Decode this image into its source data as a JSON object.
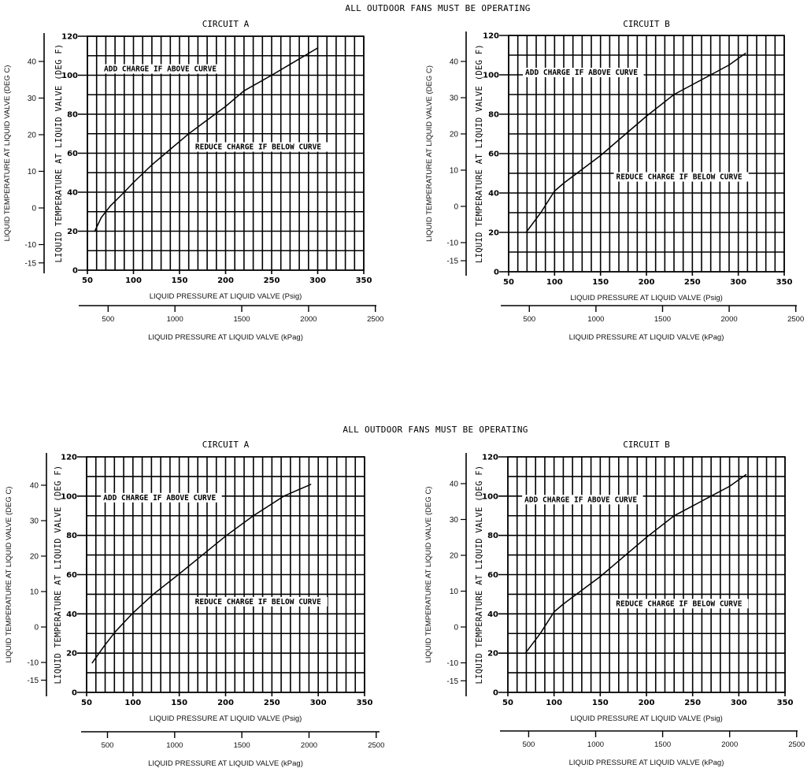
{
  "headings": [
    {
      "text": "ALL OUTDOOR FANS MUST BE OPERATING"
    },
    {
      "text": "ALL OUTDOOR FANS MUST BE OPERATING"
    }
  ],
  "chart_data": [
    {
      "type": "line",
      "title": "CIRCUIT A",
      "xlabel": "LIQUID PRESSURE AT LIQUID VALVE (Psig)",
      "x2label": "LIQUID PRESSURE AT LIQUID VALVE (kPag)",
      "ylabel": "LIQUID TEMPERATURE AT LIQUID VALVE (DEG F)",
      "y2label": "LIQUID TEMPERATURE AT LIQUID VALVE (DEG C)",
      "xlim": [
        50,
        350
      ],
      "ylim": [
        0,
        120
      ],
      "xticks": [
        "50",
        "100",
        "150",
        "200",
        "250",
        "300",
        "350"
      ],
      "yticks": [
        "0",
        "20",
        "40",
        "60",
        "80",
        "100",
        "120"
      ],
      "x2ticks": [
        "500",
        "1000",
        "1500",
        "2000",
        "2500"
      ],
      "y2ticks": [
        "40",
        "30",
        "20",
        "10",
        "0",
        "-10",
        "-15"
      ],
      "grid": true,
      "annotations": [
        "ADD CHARGE IF ABOVE CURVE",
        "REDUCE CHARGE IF BELOW CURVE"
      ],
      "series": [
        {
          "name": "Circuit A",
          "x": [
            58,
            65,
            75,
            90,
            100,
            120,
            140,
            160,
            180,
            200,
            220,
            250,
            275,
            300
          ],
          "y": [
            20,
            27,
            33,
            40,
            45,
            54,
            62,
            70,
            77,
            84,
            92,
            100,
            107,
            114
          ]
        }
      ]
    },
    {
      "type": "line",
      "title": "CIRCUIT B",
      "xlabel": "LIQUID PRESSURE AT LIQUID VALVE (Psig)",
      "x2label": "LIQUID PRESSURE AT LIQUID VALVE (kPag)",
      "ylabel": "LIQUID TEMPERATURE AT LIQUID VALVE (DEG F)",
      "y2label": "LIQUID TEMPERATURE AT LIQUID VALVE (DEG C)",
      "xlim": [
        50,
        350
      ],
      "ylim": [
        0,
        120
      ],
      "xticks": [
        "50",
        "100",
        "150",
        "200",
        "250",
        "300",
        "350"
      ],
      "yticks": [
        "0",
        "20",
        "40",
        "60",
        "80",
        "100",
        "120"
      ],
      "x2ticks": [
        "500",
        "1000",
        "1500",
        "2000",
        "2500"
      ],
      "y2ticks": [
        "40",
        "30",
        "20",
        "10",
        "0",
        "-10",
        "-15"
      ],
      "grid": true,
      "annotations": [
        "ADD CHARGE IF ABOVE CURVE",
        "REDUCE CHARGE IF BELOW CURVE"
      ],
      "series": [
        {
          "name": "Circuit B",
          "x": [
            69,
            85,
            100,
            110,
            130,
            150,
            175,
            200,
            230,
            250,
            270,
            290,
            308
          ],
          "y": [
            20,
            30,
            41,
            45,
            52,
            59,
            69,
            79,
            90,
            95,
            100,
            105,
            111
          ]
        }
      ]
    },
    {
      "type": "line",
      "title": "CIRCUIT A",
      "xlabel": "LIQUID PRESSURE AT LIQUID VALVE (Psig)",
      "x2label": "LIQUID PRESSURE AT LIQUID VALVE (kPag)",
      "ylabel": "LIQUID TEMPERATURE AT LIQUID VALVE (DEG F)",
      "y2label": "LIQUID TEMPERATURE AT LIQUID VALVE (DEG C)",
      "xlim": [
        50,
        350
      ],
      "ylim": [
        0,
        120
      ],
      "xticks": [
        "50",
        "100",
        "150",
        "200",
        "250",
        "300",
        "350"
      ],
      "yticks": [
        "0",
        "20",
        "40",
        "60",
        "80",
        "100",
        "120"
      ],
      "x2ticks": [
        "500",
        "1000",
        "1500",
        "2000",
        "2500"
      ],
      "y2ticks": [
        "40",
        "30",
        "20",
        "10",
        "0",
        "-10",
        "-15"
      ],
      "grid": true,
      "annotations": [
        "ADD CHARGE IF ABOVE CURVE",
        "REDUCE CHARGE IF BELOW CURVE"
      ],
      "series": [
        {
          "name": "Circuit A",
          "x": [
            56,
            68,
            81,
            99,
            122,
            149,
            175,
            201,
            230,
            263,
            292
          ],
          "y": [
            15,
            23,
            31,
            40,
            50,
            60,
            70,
            80,
            90,
            100,
            106
          ]
        }
      ]
    },
    {
      "type": "line",
      "title": "CIRCUIT B",
      "xlabel": "LIQUID PRESSURE AT LIQUID VALVE (Psig)",
      "x2label": "LIQUID PRESSURE AT LIQUID VALVE (kPag)",
      "ylabel": "LIQUID TEMPERATURE AT LIQUID VALVE (DEG F)",
      "y2label": "LIQUID TEMPERATURE AT LIQUID VALVE (DEG C)",
      "xlim": [
        50,
        350
      ],
      "ylim": [
        0,
        120
      ],
      "xticks": [
        "50",
        "100",
        "150",
        "200",
        "250",
        "300",
        "350"
      ],
      "yticks": [
        "0",
        "20",
        "40",
        "60",
        "80",
        "100",
        "120"
      ],
      "x2ticks": [
        "500",
        "1000",
        "1500",
        "2000",
        "2500"
      ],
      "y2ticks": [
        "40",
        "30",
        "20",
        "10",
        "0",
        "-10",
        "-15"
      ],
      "grid": true,
      "annotations": [
        "ADD CHARGE IF ABOVE CURVE",
        "REDUCE CHARGE IF BELOW CURVE"
      ],
      "series": [
        {
          "name": "Circuit B",
          "x": [
            69,
            85,
            100,
            110,
            130,
            150,
            175,
            200,
            230,
            250,
            270,
            290,
            308
          ],
          "y": [
            20,
            30,
            41,
            45,
            52,
            59,
            69,
            79,
            90,
            95,
            100,
            105,
            111
          ]
        }
      ]
    }
  ]
}
